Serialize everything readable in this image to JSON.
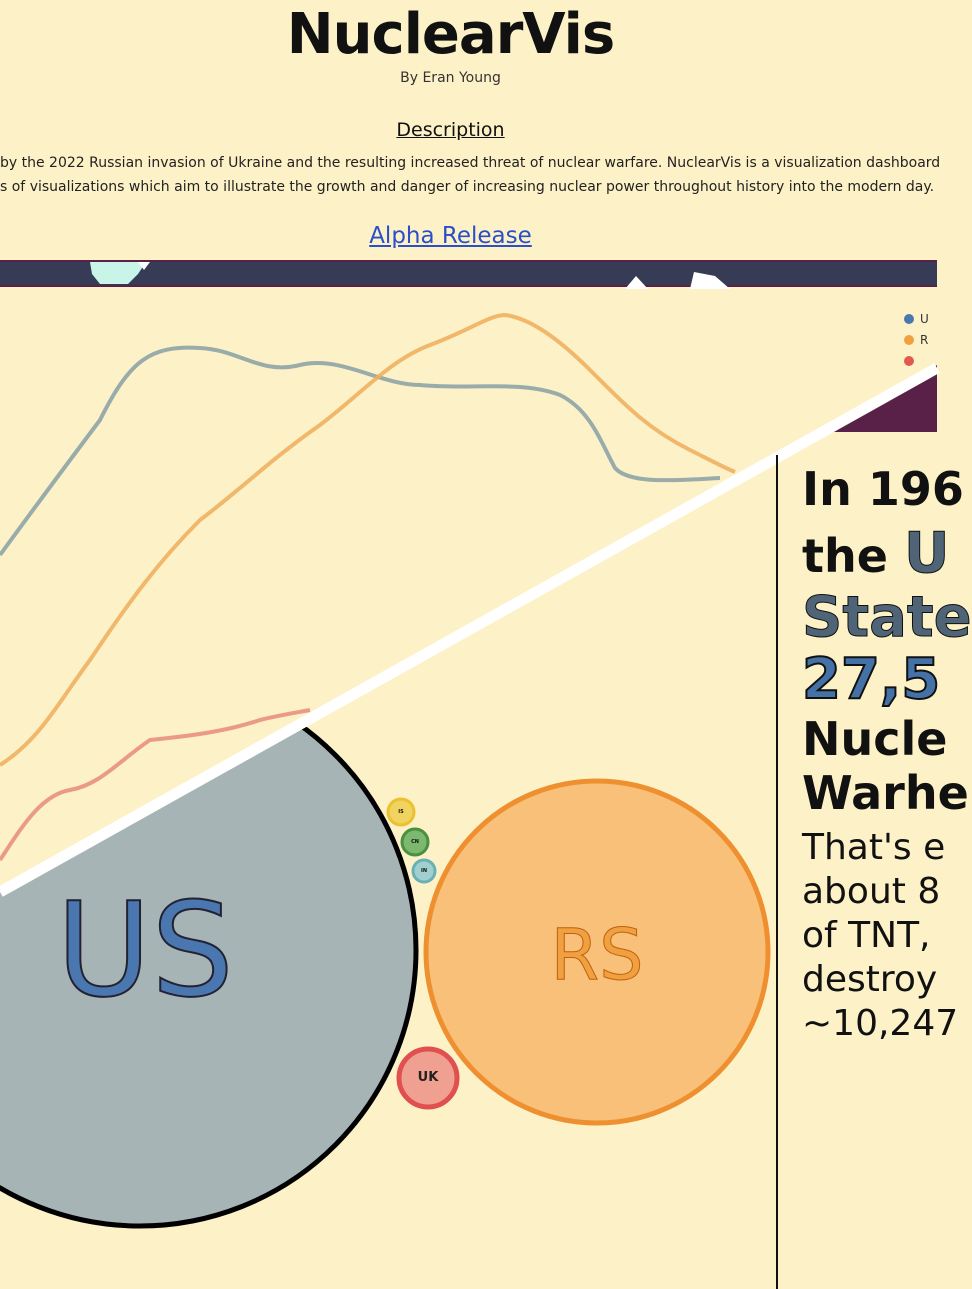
{
  "header": {
    "title": "NuclearVis",
    "byline": "By Eran Young",
    "description_heading": "Description",
    "description_lines": [
      "by the 2022 Russian invasion of Ukraine and the resulting increased threat of nuclear warfare. NuclearVis is a visualization dashboard",
      "s of visualizations which aim to illustrate the growth and danger of increasing nuclear power throughout history into the modern day."
    ],
    "release_link": "Alpha Release"
  },
  "legend": {
    "items": [
      {
        "label": "U",
        "color": "#4a77b0"
      },
      {
        "label": "R",
        "color": "#f0a040"
      },
      {
        "label": "",
        "color": "#e05a52"
      }
    ]
  },
  "bubbles": {
    "us": {
      "label": "US",
      "color": "#a6b4b6",
      "text_color": "#4a77b0"
    },
    "rs": {
      "label": "RS",
      "color": "#f8c078",
      "text_color": "#e8862a"
    },
    "uk": {
      "label": "UK",
      "color": "#f0a090"
    },
    "small": [
      {
        "label": "IS",
        "color": "#f0c840"
      },
      {
        "label": "CN",
        "color": "#5aa050"
      },
      {
        "label": "IN",
        "color": "#7bbcc0"
      }
    ]
  },
  "stat_panel": {
    "line1": "In 196",
    "line2_prefix": "the ",
    "line2_emph": "U",
    "line3": "State",
    "line4": "27,5",
    "line5": "Nucle",
    "line6": "Warhe",
    "sub_lines": [
      "That's e",
      "about 8",
      "of TNT,",
      "destroy",
      "~10,247"
    ]
  },
  "colors": {
    "background": "#fdf2c7",
    "band": "#363c55",
    "accent_maroon": "#5a2148",
    "us_line": "#8ea4a6",
    "rs_line": "#f0b060",
    "uk_line": "#e89080"
  }
}
